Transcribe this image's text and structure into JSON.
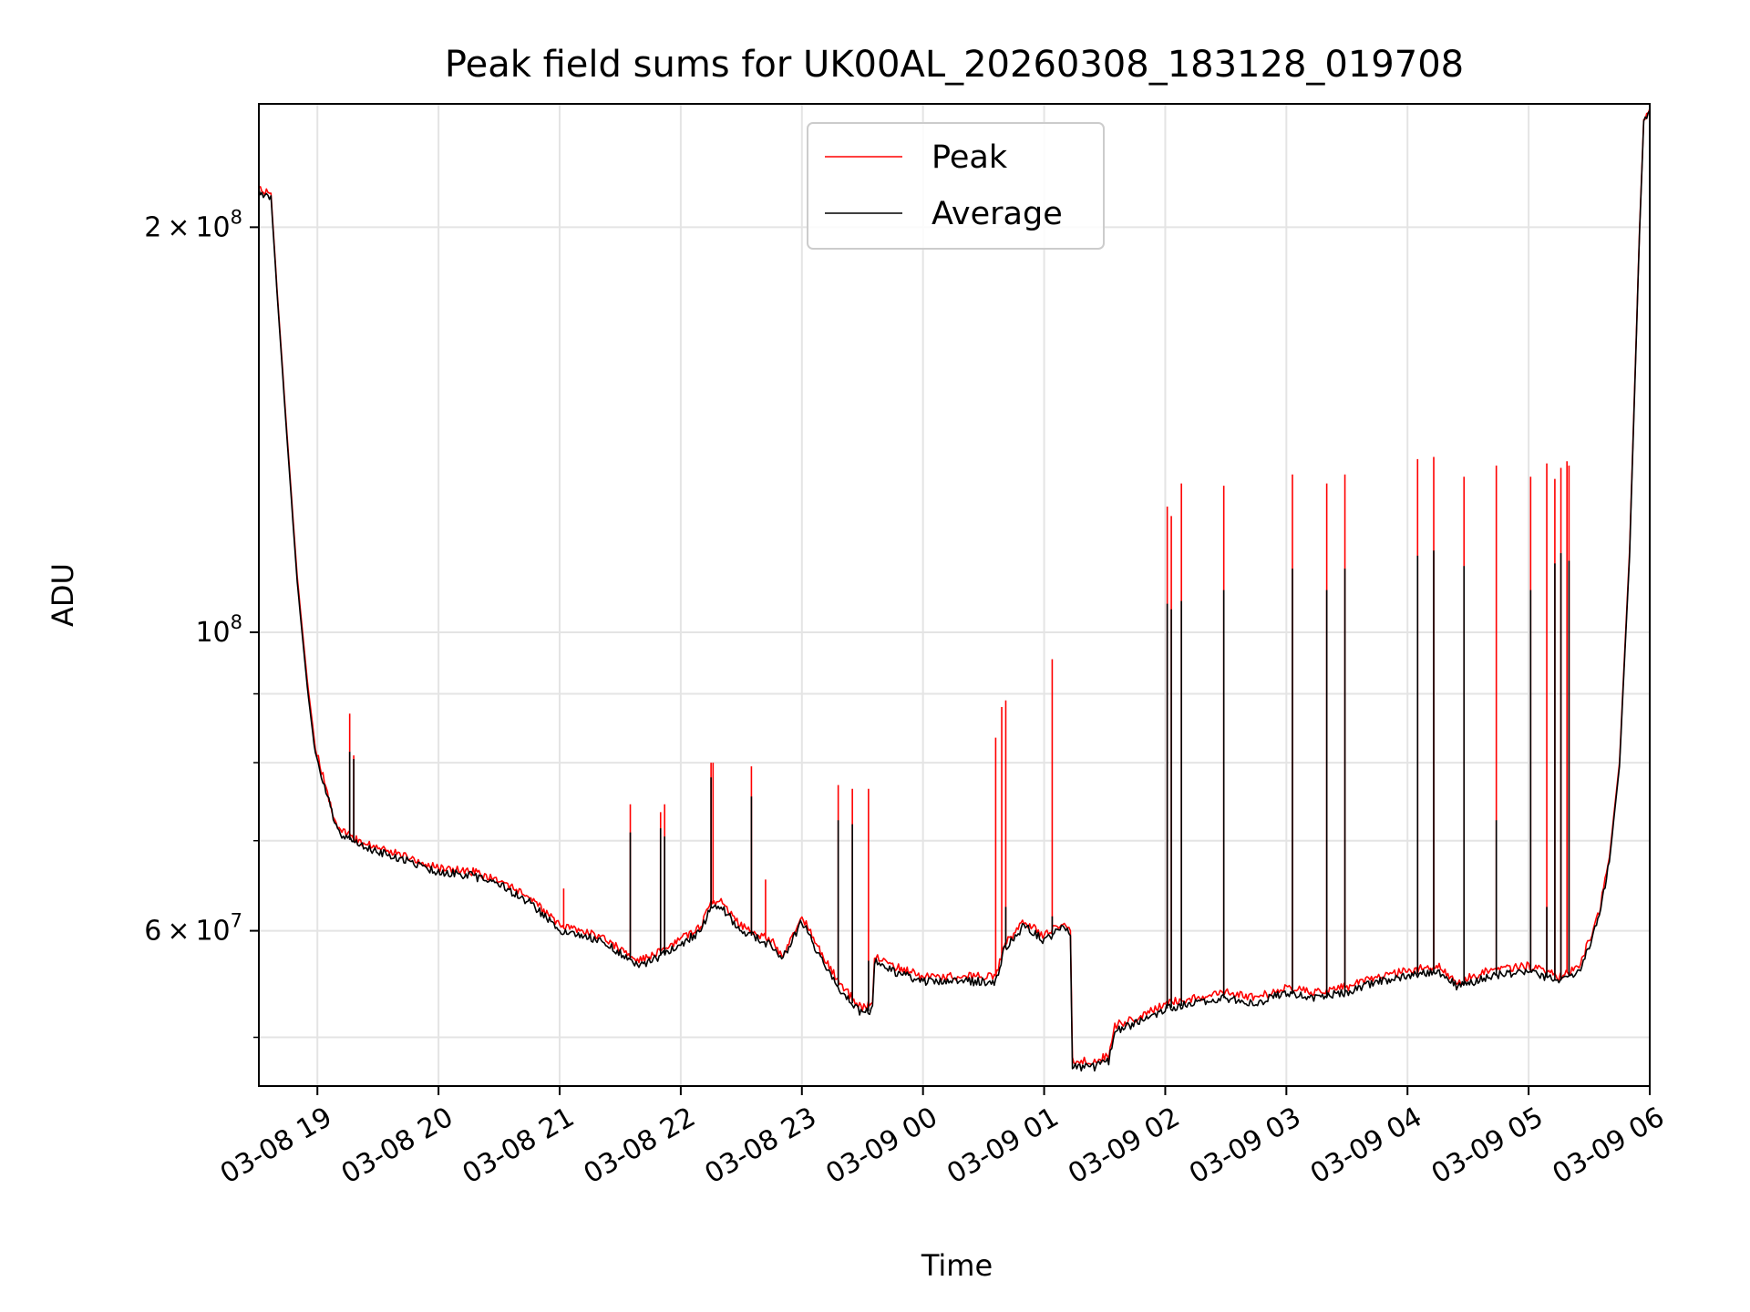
{
  "chart_data": {
    "type": "line",
    "title": "Peak field sums for UK00AL_20260308_183128_019708",
    "xlabel": "Time",
    "ylabel": "ADU",
    "y_scale": "log",
    "ylim": [
      46000000,
      247000000
    ],
    "xlim": [
      "2026-03-08 18:31",
      "2026-03-09 06:00"
    ],
    "grid": true,
    "legend_position": "top-center",
    "x_ticks": [
      {
        "time": "2026-03-08 19:00",
        "label": "03-08 19"
      },
      {
        "time": "2026-03-08 20:00",
        "label": "03-08 20"
      },
      {
        "time": "2026-03-08 21:00",
        "label": "03-08 21"
      },
      {
        "time": "2026-03-08 22:00",
        "label": "03-08 22"
      },
      {
        "time": "2026-03-08 23:00",
        "label": "03-08 23"
      },
      {
        "time": "2026-03-09 00:00",
        "label": "03-09 00"
      },
      {
        "time": "2026-03-09 01:00",
        "label": "03-09 01"
      },
      {
        "time": "2026-03-09 02:00",
        "label": "03-09 02"
      },
      {
        "time": "2026-03-09 03:00",
        "label": "03-09 03"
      },
      {
        "time": "2026-03-09 04:00",
        "label": "03-09 04"
      },
      {
        "time": "2026-03-09 05:00",
        "label": "03-09 05"
      },
      {
        "time": "2026-03-09 06:00",
        "label": "03-09 06"
      }
    ],
    "y_major_ticks": [
      {
        "value": 60000000,
        "mantissa": "6",
        "exponent": "7"
      },
      {
        "value": 100000000,
        "mantissa": "",
        "exponent": "8"
      },
      {
        "value": 200000000,
        "mantissa": "2",
        "exponent": "8"
      }
    ],
    "y_minor_ticks": [
      50000000,
      70000000,
      80000000,
      90000000
    ],
    "series": [
      {
        "name": "Peak",
        "color": "#ff0000",
        "baseline": [
          [
            "2026-03-08 18:31",
            213000000
          ],
          [
            "2026-03-08 18:37",
            212000000
          ],
          [
            "2026-03-08 18:40",
            180000000
          ],
          [
            "2026-03-08 18:45",
            140000000
          ],
          [
            "2026-03-08 18:50",
            110000000
          ],
          [
            "2026-03-08 18:55",
            92000000
          ],
          [
            "2026-03-08 18:59",
            82000000
          ],
          [
            "2026-03-08 19:05",
            76000000
          ],
          [
            "2026-03-08 19:10",
            71500000
          ],
          [
            "2026-03-08 19:20",
            70000000
          ],
          [
            "2026-03-08 19:40",
            68500000
          ],
          [
            "2026-03-08 20:00",
            66800000
          ],
          [
            "2026-03-08 20:15",
            66500000
          ],
          [
            "2026-03-08 20:30",
            65500000
          ],
          [
            "2026-03-08 20:45",
            63500000
          ],
          [
            "2026-03-08 21:00",
            60500000
          ],
          [
            "2026-03-08 21:20",
            59500000
          ],
          [
            "2026-03-08 21:40",
            57000000
          ],
          [
            "2026-03-08 21:55",
            58500000
          ],
          [
            "2026-03-08 22:10",
            60500000
          ],
          [
            "2026-03-08 22:15",
            63000000
          ],
          [
            "2026-03-08 22:20",
            63000000
          ],
          [
            "2026-03-08 22:30",
            60500000
          ],
          [
            "2026-03-08 22:45",
            59000000
          ],
          [
            "2026-03-08 22:50",
            57500000
          ],
          [
            "2026-03-08 23:00",
            61500000
          ],
          [
            "2026-03-08 23:10",
            57500000
          ],
          [
            "2026-03-08 23:20",
            54500000
          ],
          [
            "2026-03-08 23:30",
            52500000
          ],
          [
            "2026-03-08 23:35",
            53000000
          ],
          [
            "2026-03-08 23:36",
            57500000
          ],
          [
            "2026-03-08 23:45",
            56500000
          ],
          [
            "2026-03-09 00:00",
            55500000
          ],
          [
            "2026-03-09 00:20",
            55500000
          ],
          [
            "2026-03-09 00:36",
            55500000
          ],
          [
            "2026-03-09 00:40",
            58500000
          ],
          [
            "2026-03-09 00:50",
            61000000
          ],
          [
            "2026-03-09 01:00",
            59500000
          ],
          [
            "2026-03-09 01:10",
            61000000
          ],
          [
            "2026-03-09 01:13",
            60000000
          ],
          [
            "2026-03-09 01:14",
            48000000
          ],
          [
            "2026-03-09 01:25",
            48000000
          ],
          [
            "2026-03-09 01:32",
            48500000
          ],
          [
            "2026-03-09 01:35",
            51000000
          ],
          [
            "2026-03-09 01:50",
            52000000
          ],
          [
            "2026-03-09 02:00",
            53000000
          ],
          [
            "2026-03-09 02:15",
            53500000
          ],
          [
            "2026-03-09 02:30",
            54000000
          ],
          [
            "2026-03-09 02:45",
            53500000
          ],
          [
            "2026-03-09 03:00",
            54500000
          ],
          [
            "2026-03-09 03:15",
            54000000
          ],
          [
            "2026-03-09 03:30",
            54500000
          ],
          [
            "2026-03-09 03:45",
            55500000
          ],
          [
            "2026-03-09 04:00",
            56000000
          ],
          [
            "2026-03-09 04:15",
            56500000
          ],
          [
            "2026-03-09 04:25",
            55000000
          ],
          [
            "2026-03-09 04:40",
            56000000
          ],
          [
            "2026-03-09 05:00",
            56500000
          ],
          [
            "2026-03-09 05:15",
            55500000
          ],
          [
            "2026-03-09 05:25",
            56500000
          ],
          [
            "2026-03-09 05:30",
            59000000
          ],
          [
            "2026-03-09 05:35",
            62000000
          ],
          [
            "2026-03-09 05:40",
            68000000
          ],
          [
            "2026-03-09 05:45",
            80000000
          ],
          [
            "2026-03-09 05:50",
            115000000
          ],
          [
            "2026-03-09 05:55",
            200000000
          ],
          [
            "2026-03-09 05:57",
            240000000
          ],
          [
            "2026-03-09 06:00",
            245000000
          ]
        ],
        "spikes": [
          [
            "2026-03-08 19:16",
            87000000
          ],
          [
            "2026-03-08 19:18",
            81000000
          ],
          [
            "2026-03-08 21:02",
            64500000
          ],
          [
            "2026-03-08 21:35",
            74500000
          ],
          [
            "2026-03-08 21:50",
            73500000
          ],
          [
            "2026-03-08 21:52",
            74500000
          ],
          [
            "2026-03-08 22:15",
            80000000
          ],
          [
            "2026-03-08 22:16",
            80000000
          ],
          [
            "2026-03-08 22:35",
            79500000
          ],
          [
            "2026-03-08 22:42",
            65500000
          ],
          [
            "2026-03-08 23:18",
            77000000
          ],
          [
            "2026-03-08 23:25",
            76500000
          ],
          [
            "2026-03-08 23:33",
            76500000
          ],
          [
            "2026-03-09 00:36",
            83500000
          ],
          [
            "2026-03-09 00:39",
            88000000
          ],
          [
            "2026-03-09 00:41",
            89000000
          ],
          [
            "2026-03-09 01:04",
            95500000
          ],
          [
            "2026-03-09 02:01",
            124000000
          ],
          [
            "2026-03-09 02:03",
            122000000
          ],
          [
            "2026-03-09 02:08",
            129000000
          ],
          [
            "2026-03-09 02:29",
            128500000
          ],
          [
            "2026-03-09 03:03",
            131000000
          ],
          [
            "2026-03-09 03:20",
            129000000
          ],
          [
            "2026-03-09 03:29",
            131000000
          ],
          [
            "2026-03-09 04:05",
            134500000
          ],
          [
            "2026-03-09 04:13",
            135000000
          ],
          [
            "2026-03-09 04:28",
            130500000
          ],
          [
            "2026-03-09 04:44",
            133000000
          ],
          [
            "2026-03-09 05:01",
            130500000
          ],
          [
            "2026-03-09 05:09",
            133500000
          ],
          [
            "2026-03-09 05:13",
            130000000
          ],
          [
            "2026-03-09 05:16",
            132500000
          ],
          [
            "2026-03-09 05:19",
            134000000
          ],
          [
            "2026-03-09 05:20",
            133000000
          ]
        ]
      },
      {
        "name": "Average",
        "color": "#000000",
        "baseline": [
          [
            "2026-03-08 18:31",
            212000000
          ],
          [
            "2026-03-08 18:37",
            211000000
          ],
          [
            "2026-03-08 18:40",
            179000000
          ],
          [
            "2026-03-08 18:45",
            139000000
          ],
          [
            "2026-03-08 18:50",
            109000000
          ],
          [
            "2026-03-08 18:55",
            91000000
          ],
          [
            "2026-03-08 18:59",
            81000000
          ],
          [
            "2026-03-08 19:05",
            75500000
          ],
          [
            "2026-03-08 19:10",
            71000000
          ],
          [
            "2026-03-08 19:20",
            69500000
          ],
          [
            "2026-03-08 19:40",
            68000000
          ],
          [
            "2026-03-08 20:00",
            66300000
          ],
          [
            "2026-03-08 20:15",
            66000000
          ],
          [
            "2026-03-08 20:30",
            65000000
          ],
          [
            "2026-03-08 20:45",
            63000000
          ],
          [
            "2026-03-08 21:00",
            60000000
          ],
          [
            "2026-03-08 21:20",
            59000000
          ],
          [
            "2026-03-08 21:40",
            56500000
          ],
          [
            "2026-03-08 21:55",
            58000000
          ],
          [
            "2026-03-08 22:10",
            60000000
          ],
          [
            "2026-03-08 22:15",
            62500000
          ],
          [
            "2026-03-08 22:20",
            62500000
          ],
          [
            "2026-03-08 22:30",
            60000000
          ],
          [
            "2026-03-08 22:45",
            58500000
          ],
          [
            "2026-03-08 22:50",
            57000000
          ],
          [
            "2026-03-08 23:00",
            61000000
          ],
          [
            "2026-03-08 23:10",
            57000000
          ],
          [
            "2026-03-08 23:20",
            54000000
          ],
          [
            "2026-03-08 23:30",
            52000000
          ],
          [
            "2026-03-08 23:35",
            52500000
          ],
          [
            "2026-03-08 23:36",
            57000000
          ],
          [
            "2026-03-08 23:45",
            56000000
          ],
          [
            "2026-03-09 00:00",
            55000000
          ],
          [
            "2026-03-09 00:20",
            55000000
          ],
          [
            "2026-03-09 00:36",
            55000000
          ],
          [
            "2026-03-09 00:40",
            58000000
          ],
          [
            "2026-03-09 00:50",
            60500000
          ],
          [
            "2026-03-09 01:00",
            59000000
          ],
          [
            "2026-03-09 01:10",
            60500000
          ],
          [
            "2026-03-09 01:13",
            59500000
          ],
          [
            "2026-03-09 01:14",
            47500000
          ],
          [
            "2026-03-09 01:25",
            47500000
          ],
          [
            "2026-03-09 01:32",
            48000000
          ],
          [
            "2026-03-09 01:35",
            50500000
          ],
          [
            "2026-03-09 01:50",
            51500000
          ],
          [
            "2026-03-09 02:00",
            52500000
          ],
          [
            "2026-03-09 02:15",
            53000000
          ],
          [
            "2026-03-09 02:30",
            53500000
          ],
          [
            "2026-03-09 02:45",
            53000000
          ],
          [
            "2026-03-09 03:00",
            54000000
          ],
          [
            "2026-03-09 03:15",
            53500000
          ],
          [
            "2026-03-09 03:30",
            54000000
          ],
          [
            "2026-03-09 03:45",
            55000000
          ],
          [
            "2026-03-09 04:00",
            55500000
          ],
          [
            "2026-03-09 04:15",
            56000000
          ],
          [
            "2026-03-09 04:25",
            54500000
          ],
          [
            "2026-03-09 04:40",
            55500000
          ],
          [
            "2026-03-09 05:00",
            56000000
          ],
          [
            "2026-03-09 05:15",
            55000000
          ],
          [
            "2026-03-09 05:25",
            56000000
          ],
          [
            "2026-03-09 05:30",
            58500000
          ],
          [
            "2026-03-09 05:35",
            61500000
          ],
          [
            "2026-03-09 05:40",
            67500000
          ],
          [
            "2026-03-09 05:45",
            79500000
          ],
          [
            "2026-03-09 05:50",
            114000000
          ],
          [
            "2026-03-09 05:55",
            199000000
          ],
          [
            "2026-03-09 05:57",
            239000000
          ],
          [
            "2026-03-09 06:00",
            244000000
          ]
        ],
        "spikes": [
          [
            "2026-03-08 19:16",
            81500000
          ],
          [
            "2026-03-08 19:18",
            80500000
          ],
          [
            "2026-03-08 21:35",
            71000000
          ],
          [
            "2026-03-08 21:50",
            71500000
          ],
          [
            "2026-03-08 21:52",
            70500000
          ],
          [
            "2026-03-08 22:15",
            78000000
          ],
          [
            "2026-03-08 22:35",
            75500000
          ],
          [
            "2026-03-08 23:18",
            72500000
          ],
          [
            "2026-03-08 23:25",
            72000000
          ],
          [
            "2026-03-08 23:33",
            57000000
          ],
          [
            "2026-03-09 00:41",
            62500000
          ],
          [
            "2026-03-09 01:04",
            61500000
          ],
          [
            "2026-03-09 02:01",
            105000000
          ],
          [
            "2026-03-09 02:03",
            104000000
          ],
          [
            "2026-03-09 02:08",
            105500000
          ],
          [
            "2026-03-09 02:29",
            107500000
          ],
          [
            "2026-03-09 03:03",
            111500000
          ],
          [
            "2026-03-09 03:20",
            107500000
          ],
          [
            "2026-03-09 03:29",
            111500000
          ],
          [
            "2026-03-09 04:05",
            114000000
          ],
          [
            "2026-03-09 04:13",
            115000000
          ],
          [
            "2026-03-09 04:28",
            112000000
          ],
          [
            "2026-03-09 04:44",
            72500000
          ],
          [
            "2026-03-09 05:01",
            107500000
          ],
          [
            "2026-03-09 05:09",
            62500000
          ],
          [
            "2026-03-09 05:13",
            112500000
          ],
          [
            "2026-03-09 05:16",
            114500000
          ],
          [
            "2026-03-09 05:20",
            113000000
          ]
        ]
      }
    ]
  }
}
